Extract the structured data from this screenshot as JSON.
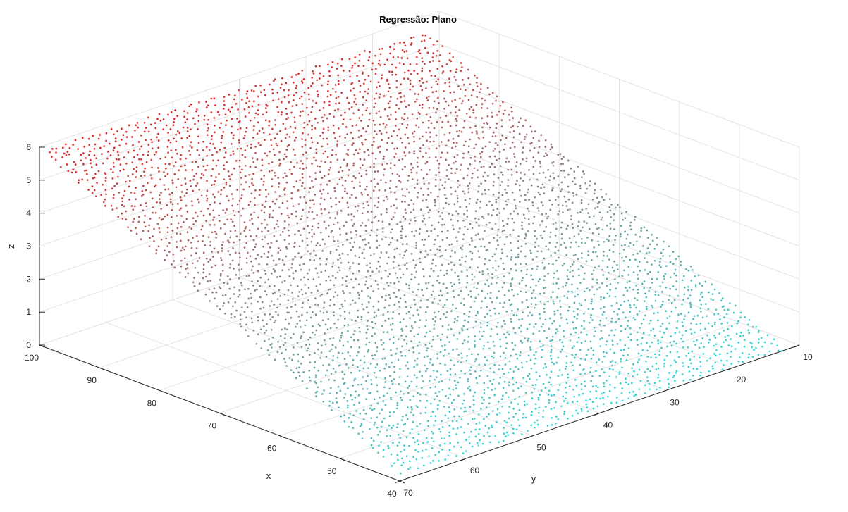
{
  "chart_data": {
    "type": "scatter",
    "title": "Regressão: Plano",
    "xlabel": "x",
    "ylabel": "y",
    "zlabel": "z",
    "xlim": [
      40,
      100
    ],
    "ylim": [
      10,
      70
    ],
    "zlim": [
      0,
      6
    ],
    "x_ticks": [
      "40",
      "50",
      "60",
      "70",
      "80",
      "90",
      "100"
    ],
    "y_ticks": [
      "10",
      "20",
      "30",
      "40",
      "50",
      "60",
      "70"
    ],
    "z_ticks": [
      "0",
      "1",
      "2",
      "3",
      "4",
      "5",
      "6"
    ],
    "grid": true,
    "plane": {
      "x_range": [
        40,
        100
      ],
      "y_range": [
        12,
        70
      ],
      "z_corners": {
        "x100_y70": 5.93,
        "x100_y12": 5.54,
        "x40_y70": 0.2,
        "x40_y12": 0.0
      }
    },
    "colors": {
      "high": "#e8201e",
      "mid": "#8a8a8a",
      "low": "#30dcdc"
    }
  }
}
